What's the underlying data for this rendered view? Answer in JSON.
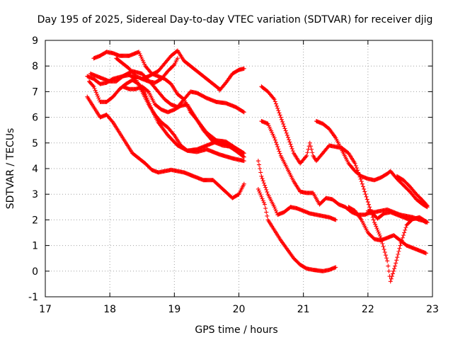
{
  "chart_data": {
    "type": "scatter",
    "title": "Day 195 of 2025, Sidereal Day-to-day VTEC variation (SDTVAR) for receiver djig",
    "xlabel": "GPS time / hours",
    "ylabel": "SDTVAR / TECUs",
    "xlim": [
      17,
      23
    ],
    "ylim": [
      -1,
      9
    ],
    "xticks": [
      "17",
      "18",
      "19",
      "20",
      "21",
      "22",
      "23"
    ],
    "yticks": [
      "-1",
      "0",
      "1",
      "2",
      "3",
      "4",
      "5",
      "6",
      "7",
      "8",
      "9"
    ],
    "grid": true,
    "marker": "+",
    "color": "#ff0000",
    "series": [
      {
        "name": "s1",
        "points": [
          [
            17.68,
            7.4
          ],
          [
            17.75,
            7.2
          ],
          [
            17.85,
            6.6
          ],
          [
            17.95,
            6.6
          ],
          [
            18.05,
            6.8
          ],
          [
            18.15,
            7.1
          ],
          [
            18.25,
            7.3
          ],
          [
            18.35,
            7.45
          ],
          [
            18.45,
            7.3
          ],
          [
            18.55,
            6.9
          ],
          [
            18.65,
            6.3
          ],
          [
            18.75,
            5.8
          ],
          [
            18.9,
            5.3
          ],
          [
            19.05,
            4.9
          ],
          [
            19.2,
            4.7
          ],
          [
            19.35,
            4.75
          ],
          [
            19.5,
            4.9
          ],
          [
            19.65,
            5.05
          ],
          [
            19.8,
            4.95
          ],
          [
            19.95,
            4.7
          ],
          [
            20.08,
            4.45
          ]
        ]
      },
      {
        "name": "s2",
        "points": [
          [
            17.65,
            7.6
          ],
          [
            17.75,
            7.5
          ],
          [
            17.85,
            7.3
          ],
          [
            17.95,
            7.35
          ],
          [
            18.05,
            7.5
          ],
          [
            18.2,
            7.6
          ],
          [
            18.3,
            7.65
          ],
          [
            18.4,
            7.5
          ],
          [
            18.5,
            7.0
          ],
          [
            18.6,
            6.5
          ],
          [
            18.7,
            6.1
          ],
          [
            18.8,
            5.8
          ],
          [
            18.9,
            5.6
          ],
          [
            19.0,
            5.3
          ],
          [
            19.1,
            4.9
          ],
          [
            19.2,
            4.7
          ],
          [
            19.35,
            4.65
          ],
          [
            19.5,
            4.75
          ],
          [
            19.7,
            4.55
          ],
          [
            19.9,
            4.4
          ],
          [
            20.08,
            4.3
          ]
        ]
      },
      {
        "name": "s3",
        "points": [
          [
            17.65,
            6.8
          ],
          [
            17.75,
            6.4
          ],
          [
            17.85,
            6.0
          ],
          [
            17.95,
            6.1
          ],
          [
            18.05,
            5.8
          ],
          [
            18.15,
            5.4
          ],
          [
            18.25,
            5.0
          ],
          [
            18.35,
            4.6
          ],
          [
            18.45,
            4.4
          ],
          [
            18.55,
            4.2
          ],
          [
            18.65,
            3.95
          ],
          [
            18.75,
            3.85
          ],
          [
            18.85,
            3.9
          ],
          [
            18.95,
            3.95
          ],
          [
            19.05,
            3.9
          ],
          [
            19.15,
            3.85
          ],
          [
            19.3,
            3.7
          ],
          [
            19.45,
            3.55
          ],
          [
            19.6,
            3.55
          ],
          [
            19.75,
            3.2
          ],
          [
            19.9,
            2.85
          ],
          [
            20.0,
            3.0
          ],
          [
            20.08,
            3.4
          ]
        ]
      },
      {
        "name": "s4",
        "points": [
          [
            17.75,
            8.3
          ],
          [
            17.85,
            8.4
          ],
          [
            17.95,
            8.55
          ],
          [
            18.05,
            8.5
          ],
          [
            18.15,
            8.4
          ],
          [
            18.3,
            8.4
          ],
          [
            18.45,
            8.55
          ],
          [
            18.55,
            8.0
          ],
          [
            18.65,
            7.7
          ],
          [
            18.75,
            7.6
          ],
          [
            18.85,
            7.5
          ],
          [
            18.95,
            7.3
          ],
          [
            19.05,
            6.9
          ],
          [
            19.15,
            6.7
          ],
          [
            19.25,
            6.2
          ],
          [
            19.35,
            5.9
          ],
          [
            19.5,
            5.4
          ],
          [
            19.65,
            5.1
          ],
          [
            19.8,
            5.05
          ],
          [
            19.95,
            4.8
          ],
          [
            20.08,
            4.6
          ]
        ]
      },
      {
        "name": "s5",
        "points": [
          [
            17.7,
            7.7
          ],
          [
            17.8,
            7.6
          ],
          [
            17.9,
            7.5
          ],
          [
            18.0,
            7.4
          ],
          [
            18.1,
            7.4
          ],
          [
            18.2,
            7.6
          ],
          [
            18.35,
            7.8
          ],
          [
            18.5,
            7.7
          ],
          [
            18.65,
            7.3
          ],
          [
            18.75,
            7.0
          ],
          [
            18.85,
            6.7
          ],
          [
            18.95,
            6.5
          ],
          [
            19.05,
            6.4
          ],
          [
            19.15,
            6.7
          ],
          [
            19.25,
            7.0
          ],
          [
            19.35,
            6.95
          ],
          [
            19.5,
            6.75
          ],
          [
            19.65,
            6.6
          ],
          [
            19.8,
            6.55
          ],
          [
            19.95,
            6.4
          ],
          [
            20.08,
            6.2
          ]
        ]
      },
      {
        "name": "s6",
        "points": [
          [
            18.2,
            7.2
          ],
          [
            18.3,
            7.1
          ],
          [
            18.4,
            7.1
          ],
          [
            18.5,
            7.2
          ],
          [
            18.6,
            7.0
          ],
          [
            18.7,
            6.5
          ],
          [
            18.8,
            6.3
          ],
          [
            18.9,
            6.2
          ],
          [
            19.0,
            6.3
          ],
          [
            19.1,
            6.45
          ],
          [
            19.2,
            6.5
          ],
          [
            19.3,
            6.1
          ],
          [
            19.45,
            5.5
          ],
          [
            19.6,
            5.05
          ],
          [
            19.75,
            4.9
          ],
          [
            19.9,
            4.85
          ],
          [
            20.05,
            4.6
          ]
        ]
      },
      {
        "name": "s7",
        "points": [
          [
            18.5,
            7.5
          ],
          [
            18.6,
            7.6
          ],
          [
            18.75,
            7.8
          ],
          [
            18.85,
            8.1
          ],
          [
            18.95,
            8.4
          ],
          [
            19.05,
            8.6
          ],
          [
            19.15,
            8.2
          ],
          [
            19.3,
            7.9
          ],
          [
            19.4,
            7.7
          ],
          [
            19.5,
            7.5
          ],
          [
            19.6,
            7.3
          ],
          [
            19.7,
            7.1
          ]
        ]
      },
      {
        "name": "s8",
        "points": [
          [
            18.1,
            8.3
          ],
          [
            18.2,
            8.1
          ],
          [
            18.3,
            7.9
          ],
          [
            18.4,
            7.6
          ],
          [
            18.5,
            7.5
          ],
          [
            18.6,
            7.4
          ],
          [
            18.7,
            7.35
          ],
          [
            18.8,
            7.5
          ],
          [
            18.9,
            7.8
          ],
          [
            19.0,
            8.05
          ],
          [
            19.05,
            8.3
          ]
        ]
      },
      {
        "name": "s9",
        "points": [
          [
            19.7,
            7.05
          ],
          [
            19.8,
            7.35
          ],
          [
            19.9,
            7.7
          ],
          [
            20.0,
            7.85
          ],
          [
            20.08,
            7.9
          ]
        ]
      },
      {
        "name": "s10",
        "points": [
          [
            20.35,
            7.2
          ],
          [
            20.45,
            7.0
          ],
          [
            20.55,
            6.7
          ],
          [
            20.65,
            6.0
          ],
          [
            20.75,
            5.3
          ],
          [
            20.85,
            4.6
          ],
          [
            20.95,
            4.2
          ],
          [
            21.05,
            4.5
          ],
          [
            21.1,
            5.0
          ],
          [
            21.15,
            4.5
          ],
          [
            21.2,
            4.3
          ],
          [
            21.3,
            4.6
          ],
          [
            21.4,
            4.9
          ],
          [
            21.5,
            4.85
          ],
          [
            21.6,
            4.8
          ],
          [
            21.7,
            4.6
          ],
          [
            21.8,
            4.2
          ],
          [
            21.9,
            3.5
          ],
          [
            22.0,
            2.7
          ],
          [
            22.1,
            1.9
          ],
          [
            22.2,
            1.3
          ],
          [
            22.3,
            0.4
          ],
          [
            22.35,
            -0.4
          ],
          [
            22.42,
            0.2
          ],
          [
            22.5,
            1.0
          ],
          [
            22.6,
            1.8
          ],
          [
            22.7,
            2.05
          ],
          [
            22.8,
            2.05
          ],
          [
            22.9,
            1.9
          ]
        ]
      },
      {
        "name": "s11",
        "points": [
          [
            20.35,
            5.85
          ],
          [
            20.45,
            5.75
          ],
          [
            20.55,
            5.2
          ],
          [
            20.65,
            4.5
          ],
          [
            20.75,
            4.0
          ],
          [
            20.85,
            3.5
          ],
          [
            20.95,
            3.1
          ],
          [
            21.05,
            3.05
          ],
          [
            21.15,
            3.05
          ],
          [
            21.25,
            2.6
          ],
          [
            21.35,
            2.85
          ],
          [
            21.45,
            2.8
          ],
          [
            21.55,
            2.6
          ],
          [
            21.65,
            2.5
          ],
          [
            21.75,
            2.3
          ],
          [
            21.85,
            2.2
          ],
          [
            21.95,
            2.2
          ],
          [
            22.05,
            2.3
          ],
          [
            22.15,
            2.05
          ],
          [
            22.25,
            2.25
          ],
          [
            22.35,
            2.3
          ],
          [
            22.5,
            2.15
          ],
          [
            22.65,
            2.0
          ],
          [
            22.8,
            2.1
          ],
          [
            22.92,
            1.9
          ]
        ]
      },
      {
        "name": "s12",
        "points": [
          [
            20.3,
            4.3
          ],
          [
            20.35,
            3.7
          ],
          [
            20.45,
            3.0
          ],
          [
            20.55,
            2.5
          ],
          [
            20.6,
            2.2
          ],
          [
            20.7,
            2.3
          ],
          [
            20.8,
            2.5
          ],
          [
            20.9,
            2.45
          ],
          [
            21.0,
            2.35
          ],
          [
            21.1,
            2.25
          ],
          [
            21.2,
            2.2
          ],
          [
            21.3,
            2.15
          ],
          [
            21.4,
            2.1
          ],
          [
            21.5,
            2.0
          ]
        ]
      },
      {
        "name": "s13",
        "points": [
          [
            20.3,
            3.2
          ],
          [
            20.4,
            2.6
          ],
          [
            20.45,
            2.0
          ],
          [
            20.55,
            1.6
          ],
          [
            20.65,
            1.2
          ],
          [
            20.75,
            0.85
          ],
          [
            20.85,
            0.5
          ],
          [
            20.95,
            0.25
          ],
          [
            21.05,
            0.1
          ],
          [
            21.15,
            0.05
          ],
          [
            21.3,
            0.0
          ],
          [
            21.4,
            0.05
          ],
          [
            21.5,
            0.15
          ]
        ]
      },
      {
        "name": "s14",
        "points": [
          [
            21.2,
            5.85
          ],
          [
            21.3,
            5.75
          ],
          [
            21.4,
            5.55
          ],
          [
            21.5,
            5.2
          ],
          [
            21.6,
            4.7
          ],
          [
            21.7,
            4.2
          ],
          [
            21.8,
            3.9
          ],
          [
            21.9,
            3.7
          ],
          [
            22.0,
            3.6
          ],
          [
            22.1,
            3.55
          ],
          [
            22.2,
            3.65
          ],
          [
            22.3,
            3.8
          ],
          [
            22.35,
            3.9
          ],
          [
            22.45,
            3.6
          ],
          [
            22.55,
            3.35
          ],
          [
            22.65,
            3.1
          ],
          [
            22.75,
            2.8
          ],
          [
            22.85,
            2.6
          ],
          [
            22.92,
            2.5
          ]
        ]
      },
      {
        "name": "s15",
        "points": [
          [
            21.7,
            2.5
          ],
          [
            21.8,
            2.35
          ],
          [
            21.9,
            2.0
          ],
          [
            22.0,
            1.5
          ],
          [
            22.1,
            1.25
          ],
          [
            22.2,
            1.2
          ],
          [
            22.3,
            1.3
          ],
          [
            22.4,
            1.4
          ],
          [
            22.5,
            1.2
          ],
          [
            22.6,
            1.0
          ],
          [
            22.7,
            0.9
          ],
          [
            22.8,
            0.8
          ],
          [
            22.9,
            0.7
          ]
        ]
      },
      {
        "name": "s16",
        "points": [
          [
            22.45,
            3.7
          ],
          [
            22.55,
            3.55
          ],
          [
            22.65,
            3.3
          ],
          [
            22.75,
            3.0
          ],
          [
            22.85,
            2.75
          ],
          [
            22.92,
            2.55
          ]
        ]
      },
      {
        "name": "s17",
        "points": [
          [
            22.0,
            2.35
          ],
          [
            22.1,
            2.3
          ],
          [
            22.2,
            2.35
          ],
          [
            22.3,
            2.4
          ],
          [
            22.4,
            2.3
          ],
          [
            22.5,
            2.2
          ],
          [
            22.6,
            2.15
          ],
          [
            22.7,
            2.1
          ],
          [
            22.8,
            2.0
          ],
          [
            22.9,
            1.95
          ]
        ]
      }
    ]
  }
}
